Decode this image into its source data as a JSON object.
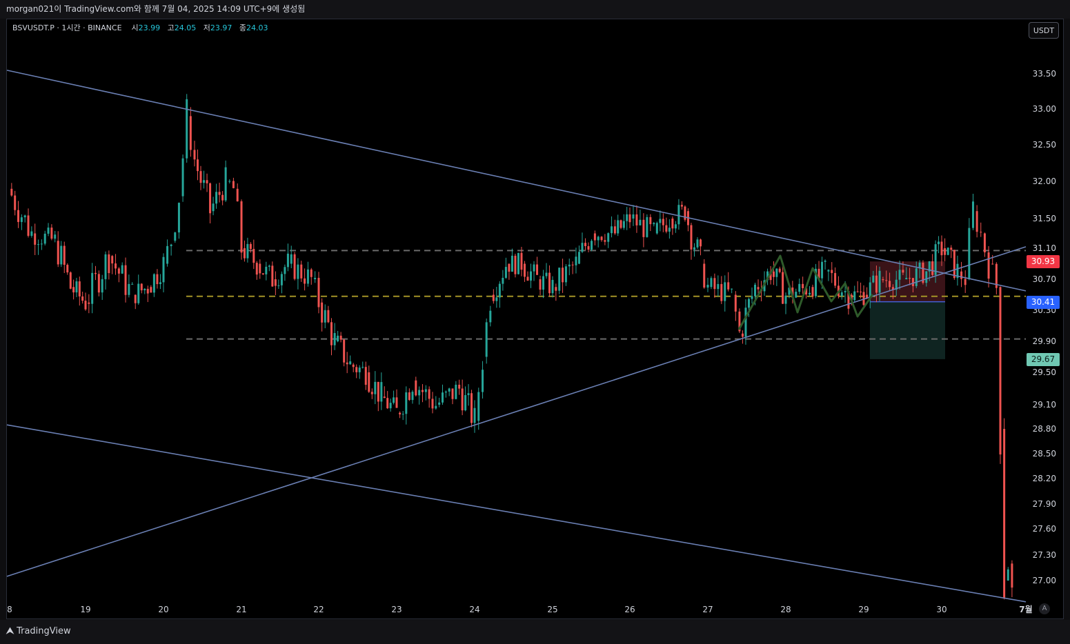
{
  "header": {
    "caption": "morgan021이 TradingView.com와 함께 7월 04, 2025 14:09 UTC+9에 생성됨"
  },
  "legend": {
    "symbol": "BSVUSDT.P · 1시간 · BINANCE",
    "open_label": "시",
    "open": "23.99",
    "high_label": "고",
    "high": "24.05",
    "low_label": "저",
    "low": "23.97",
    "close_label": "종",
    "close": "24.03"
  },
  "unit_button": "USDT",
  "auto_button": "A",
  "brand": "TradingView",
  "colors": {
    "up": "#26a69a",
    "down": "#ef5350",
    "trendline": "#6a7fb3",
    "gray_level": "#6b6b6b",
    "yellow_level": "#a39326",
    "zigzag": "#2e5a2a",
    "stop_zone": "#3a1318",
    "target_zone": "#0f2421",
    "tag_red": "#f23645",
    "tag_blue": "#2962ff",
    "tag_teal": "#70c8b3"
  },
  "price_tags": [
    {
      "label": "30.93",
      "value": 30.93,
      "color": "tag_red"
    },
    {
      "label": "30.41",
      "value": 30.41,
      "color": "tag_blue"
    },
    {
      "label": "29.67",
      "value": 29.67,
      "color": "tag_teal"
    }
  ],
  "chart_data": {
    "type": "candlestick",
    "y_axis": {
      "ticks": [
        "33.50",
        "33.00",
        "32.50",
        "32.00",
        "31.50",
        "31.10",
        "30.70",
        "30.30",
        "29.90",
        "29.50",
        "29.10",
        "28.80",
        "28.50",
        "28.20",
        "27.90",
        "27.60",
        "27.30",
        "27.00"
      ],
      "scale": "log"
    },
    "x_axis": {
      "ticks": [
        "8",
        "19",
        "20",
        "21",
        "22",
        "23",
        "24",
        "25",
        "26",
        "27",
        "28",
        "29",
        "30",
        "7월"
      ]
    },
    "horizontal_levels": [
      {
        "value": 31.07,
        "style": "gray-dashed"
      },
      {
        "value": 30.48,
        "style": "yellow-dashed"
      },
      {
        "value": 29.93,
        "style": "gray-dashed"
      }
    ],
    "trendlines": [
      {
        "from": [
          "18",
          33.55
        ],
        "to": [
          "7월",
          30.55
        ]
      },
      {
        "from": [
          "18",
          27.05
        ],
        "to": [
          "7월",
          31.12
        ]
      },
      {
        "from": [
          "18",
          28.85
        ],
        "to": [
          "7월",
          26.75
        ]
      }
    ],
    "position_zones": {
      "entry": 30.41,
      "stop": 30.93,
      "target": 29.67,
      "from": "29",
      "to": "30"
    },
    "candles_ohlc_path": [
      [
        "18",
        31.9
      ],
      [
        "18.3",
        31.3
      ],
      [
        "18.6",
        31.2
      ],
      [
        "18.8",
        30.6
      ],
      [
        "19",
        30.4
      ],
      [
        "19.3",
        31.0
      ],
      [
        "19.6",
        30.5
      ],
      [
        "19.8",
        30.6
      ],
      [
        "20",
        30.9
      ],
      [
        "20.1",
        31.2
      ],
      [
        "20.2",
        31.8
      ],
      [
        "20.3",
        32.9
      ],
      [
        "20.4",
        32.3
      ],
      [
        "20.6",
        31.6
      ],
      [
        "20.8",
        32.0
      ],
      [
        "20.9",
        31.9
      ],
      [
        "21",
        31.1
      ],
      [
        "21.2",
        30.9
      ],
      [
        "21.4",
        30.7
      ],
      [
        "21.6",
        30.9
      ],
      [
        "21.9",
        30.7
      ],
      [
        "22",
        30.4
      ],
      [
        "22.2",
        29.9
      ],
      [
        "22.4",
        29.6
      ],
      [
        "22.6",
        29.5
      ],
      [
        "22.8",
        29.2
      ],
      [
        "23",
        29.0
      ],
      [
        "23.2",
        29.4
      ],
      [
        "23.5",
        29.1
      ],
      [
        "23.8",
        29.3
      ],
      [
        "24",
        28.9
      ],
      [
        "24.1",
        29.7
      ],
      [
        "24.2",
        30.5
      ],
      [
        "24.4",
        30.9
      ],
      [
        "24.6",
        30.9
      ],
      [
        "24.8",
        30.7
      ],
      [
        "25",
        30.6
      ],
      [
        "25.3",
        30.9
      ],
      [
        "25.5",
        31.3
      ],
      [
        "25.8",
        31.3
      ],
      [
        "26",
        31.5
      ],
      [
        "26.3",
        31.3
      ],
      [
        "26.5",
        31.5
      ],
      [
        "26.7",
        31.6
      ],
      [
        "26.9",
        30.9
      ],
      [
        "27",
        30.6
      ],
      [
        "27.3",
        30.5
      ],
      [
        "27.4",
        30.0
      ],
      [
        "27.6",
        30.6
      ],
      [
        "27.8",
        30.8
      ],
      [
        "28",
        30.5
      ],
      [
        "28.3",
        30.6
      ],
      [
        "28.5",
        30.8
      ],
      [
        "28.8",
        30.5
      ],
      [
        "29",
        30.5
      ],
      [
        "29.2",
        30.7
      ],
      [
        "29.5",
        30.7
      ],
      [
        "29.8",
        30.8
      ],
      [
        "30",
        31.1
      ],
      [
        "30.2",
        30.8
      ],
      [
        "30.3",
        30.7
      ],
      [
        "30.4",
        31.6
      ],
      [
        "30.5",
        31.3
      ],
      [
        "30.6",
        30.9
      ],
      [
        "30.7",
        30.6
      ],
      [
        "30.75",
        28.8
      ],
      [
        "30.8",
        27.0
      ],
      [
        "30.85",
        27.2
      ],
      [
        "30.9",
        26.85
      ]
    ]
  }
}
